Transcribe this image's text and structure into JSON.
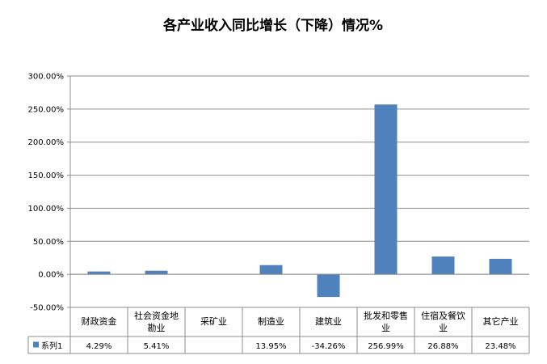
{
  "chart_data": {
    "type": "bar",
    "title": "各产业收入同比增长（下降）情况%",
    "xlabel": "",
    "ylabel": "",
    "ylim": [
      -50,
      300
    ],
    "y_ticks": [
      300,
      250,
      200,
      150,
      100,
      50,
      0,
      -50
    ],
    "y_tick_labels": [
      "300.00%",
      "250.00%",
      "200.00%",
      "150.00%",
      "100.00%",
      "50.00%",
      "0.00%",
      "-50.00%"
    ],
    "grid": true,
    "legend": "data-table-left",
    "categories": [
      [
        "财政资金"
      ],
      [
        "社会资金地",
        "勘业"
      ],
      [
        "采矿业"
      ],
      [
        "制造业"
      ],
      [
        "建筑业"
      ],
      [
        "批发和零售",
        "业"
      ],
      [
        "住宿及餐饮",
        "业"
      ],
      [
        "其它产业"
      ]
    ],
    "series": [
      {
        "name": "系列1",
        "color": "#4F81BD",
        "values": [
          4.29,
          5.41,
          null,
          13.95,
          -34.26,
          256.99,
          26.88,
          23.48
        ],
        "labels": [
          "4.29%",
          "5.41%",
          "",
          "13.95%",
          "-34.26%",
          "256.99%",
          "26.88%",
          "23.48%"
        ]
      }
    ]
  }
}
